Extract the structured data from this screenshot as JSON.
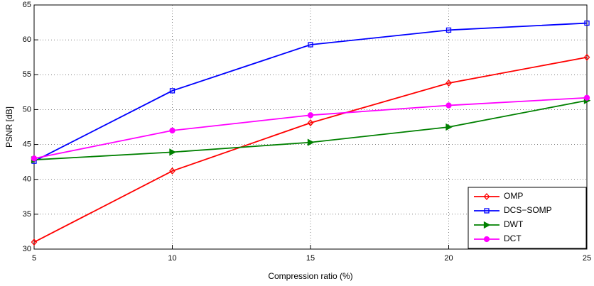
{
  "chart_data": {
    "type": "line",
    "xlabel": "Compression ratio (%)",
    "ylabel": "PSNR [dB]",
    "x": [
      5,
      10,
      15,
      20,
      25
    ],
    "series": [
      {
        "name": "OMP",
        "color": "#ff0000",
        "marker": "diamond",
        "values": [
          31.0,
          41.2,
          48.1,
          53.8,
          57.5
        ]
      },
      {
        "name": "DCS−SOMP",
        "color": "#0000ff",
        "marker": "square",
        "values": [
          42.6,
          52.7,
          59.3,
          61.4,
          62.4
        ]
      },
      {
        "name": "DWT",
        "color": "#008000",
        "marker": "triangle-right",
        "values": [
          42.8,
          43.9,
          45.3,
          47.5,
          51.3
        ]
      },
      {
        "name": "DCT",
        "color": "#ff00ff",
        "marker": "circle",
        "values": [
          43.0,
          47.0,
          49.2,
          50.6,
          51.7
        ]
      }
    ],
    "xlim": [
      5,
      25
    ],
    "xticks": [
      5,
      10,
      15,
      20,
      25
    ],
    "ylim": [
      30,
      65
    ],
    "yticks": [
      30,
      35,
      40,
      45,
      50,
      55,
      60,
      65
    ],
    "grid": true,
    "legend": "lower right"
  }
}
